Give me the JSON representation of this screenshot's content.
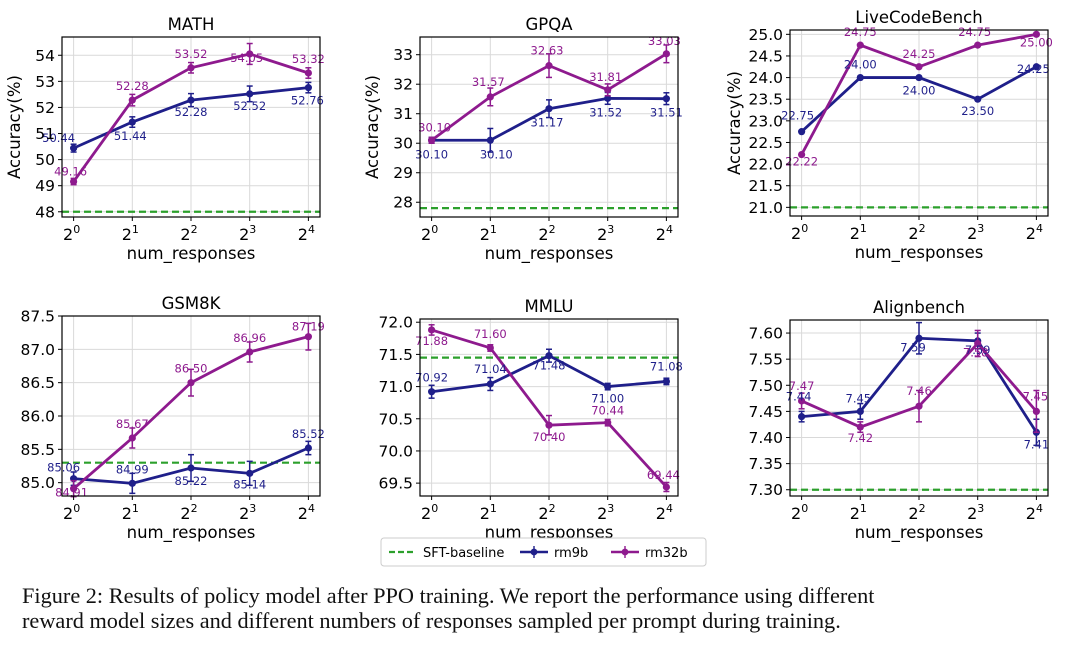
{
  "colors": {
    "baseline": "#2ca02c",
    "rm9b": "#1f1f8a",
    "rm32b": "#8e1a8e",
    "grid": "#d9d9d9",
    "axis": "#000000"
  },
  "legend": {
    "placement": "bottom-center",
    "items": [
      {
        "key": "baseline",
        "label": "SFT-baseline"
      },
      {
        "key": "rm9b",
        "label": "rm9b"
      },
      {
        "key": "rm32b",
        "label": "rm32b"
      }
    ]
  },
  "chart_data": [
    {
      "type": "line",
      "title": "MATH",
      "xlabel": "num_responses",
      "ylabel": "Accuracy(%)",
      "x": [
        0,
        1,
        2,
        3,
        4
      ],
      "x_ticks": [
        "0",
        "1",
        "2",
        "3",
        "4"
      ],
      "x_tick_base": "2",
      "ylim": [
        47.8,
        54.7
      ],
      "y_ticks": [
        "48",
        "49",
        "50",
        "51",
        "52",
        "53",
        "54"
      ],
      "grid": true,
      "baseline": 48.0,
      "series": [
        {
          "name": "rm9b",
          "values": [
            50.44,
            51.44,
            52.28,
            52.52,
            52.76
          ],
          "labels": [
            "50.44",
            "51.44",
            "52.28",
            "52.52",
            "52.76"
          ],
          "err": [
            0.15,
            0.2,
            0.25,
            0.3,
            0.2
          ]
        },
        {
          "name": "rm32b",
          "values": [
            49.16,
            52.28,
            53.52,
            54.05,
            53.32
          ],
          "labels": [
            "49.16",
            "52.28",
            "53.52",
            "54.05",
            "53.32"
          ],
          "err": [
            0.12,
            0.22,
            0.2,
            0.4,
            0.2
          ]
        }
      ]
    },
    {
      "type": "line",
      "title": "GPQA",
      "xlabel": "num_responses",
      "ylabel": "Accuracy(%)",
      "x": [
        0,
        1,
        2,
        3,
        4
      ],
      "x_ticks": [
        "0",
        "1",
        "2",
        "3",
        "4"
      ],
      "x_tick_base": "2",
      "ylim": [
        27.5,
        33.6
      ],
      "y_ticks": [
        "28",
        "29",
        "30",
        "31",
        "32",
        "33"
      ],
      "grid": true,
      "baseline": 27.8,
      "series": [
        {
          "name": "rm9b",
          "values": [
            30.1,
            30.1,
            31.17,
            31.52,
            31.51
          ],
          "labels": [
            "30.10",
            "30.10",
            "31.17",
            "31.52",
            "31.51"
          ],
          "err": [
            0.1,
            0.4,
            0.3,
            0.2,
            0.2
          ]
        },
        {
          "name": "rm32b",
          "values": [
            30.1,
            31.57,
            32.63,
            31.81,
            33.03
          ],
          "labels": [
            "30.10",
            "31.57",
            "32.63",
            "31.81",
            "33.03"
          ],
          "err": [
            0.1,
            0.3,
            0.4,
            0.2,
            0.3
          ]
        }
      ]
    },
    {
      "type": "line",
      "title": "LiveCodeBench",
      "xlabel": "num_responses",
      "ylabel": "Accuracy(%)",
      "x": [
        0,
        1,
        2,
        3,
        4
      ],
      "x_ticks": [
        "0",
        "1",
        "2",
        "3",
        "4"
      ],
      "x_tick_base": "2",
      "ylim": [
        20.8,
        25.1
      ],
      "y_ticks": [
        "21.0",
        "21.5",
        "22.0",
        "22.5",
        "23.0",
        "23.5",
        "24.0",
        "24.5",
        "25.0"
      ],
      "grid": true,
      "baseline": 21.0,
      "series": [
        {
          "name": "rm9b",
          "values": [
            22.75,
            24.0,
            24.0,
            23.5,
            24.25
          ],
          "labels": [
            "22.75",
            "24.00",
            "24.00",
            "23.50",
            "24.25"
          ],
          "err": [
            0,
            0,
            0,
            0,
            0
          ]
        },
        {
          "name": "rm32b",
          "values": [
            22.22,
            24.75,
            24.25,
            24.75,
            25.0
          ],
          "labels": [
            "22.22",
            "24.75",
            "24.25",
            "24.75",
            "25.00"
          ],
          "err": [
            0,
            0,
            0,
            0,
            0
          ]
        }
      ]
    },
    {
      "type": "line",
      "title": "GSM8K",
      "xlabel": "num_responses",
      "ylabel": "",
      "x": [
        0,
        1,
        2,
        3,
        4
      ],
      "x_ticks": [
        "0",
        "1",
        "2",
        "3",
        "4"
      ],
      "x_tick_base": "2",
      "ylim": [
        84.8,
        87.5
      ],
      "y_ticks": [
        "85.0",
        "85.5",
        "86.0",
        "86.5",
        "87.0",
        "87.5"
      ],
      "grid": true,
      "baseline": 85.3,
      "series": [
        {
          "name": "rm9b",
          "values": [
            85.06,
            84.99,
            85.22,
            85.14,
            85.52
          ],
          "labels": [
            "85.06",
            "84.99",
            "85.22",
            "85.14",
            "85.52"
          ],
          "err": [
            0.1,
            0.15,
            0.2,
            0.18,
            0.1
          ]
        },
        {
          "name": "rm32b",
          "values": [
            84.91,
            85.67,
            86.5,
            86.96,
            87.19
          ],
          "labels": [
            "84.91",
            "85.67",
            "86.50",
            "86.96",
            "87.19"
          ],
          "err": [
            0.12,
            0.15,
            0.2,
            0.15,
            0.2
          ]
        }
      ]
    },
    {
      "type": "line",
      "title": "MMLU",
      "xlabel": "num_responses",
      "ylabel": "",
      "x": [
        0,
        1,
        2,
        3,
        4
      ],
      "x_ticks": [
        "0",
        "1",
        "2",
        "3",
        "4"
      ],
      "x_tick_base": "2",
      "ylim": [
        69.3,
        72.05
      ],
      "y_ticks": [
        "69.5",
        "70.0",
        "70.5",
        "71.0",
        "71.5",
        "72.0"
      ],
      "y_tick_text": [
        "69.5",
        "70.0",
        "70.5",
        "71.0",
        "71.5",
        "72.0"
      ],
      "grid": true,
      "baseline": 71.45,
      "series": [
        {
          "name": "rm9b",
          "values": [
            70.92,
            71.04,
            71.48,
            71.0,
            71.08
          ],
          "labels": [
            "70.92",
            "71.04",
            "71.48",
            "71.00",
            "71.08"
          ],
          "err": [
            0.1,
            0.1,
            0.1,
            0.05,
            0.05
          ]
        },
        {
          "name": "rm32b",
          "values": [
            71.88,
            71.6,
            70.4,
            70.44,
            69.44
          ],
          "labels": [
            "71.88",
            "71.60",
            "70.40",
            "70.44",
            "69.44"
          ],
          "err": [
            0.08,
            0.05,
            0.15,
            0.05,
            0.07
          ]
        }
      ]
    },
    {
      "type": "line",
      "title": "Alignbench",
      "xlabel": "num_responses",
      "ylabel": "",
      "x": [
        0,
        1,
        2,
        3,
        4
      ],
      "x_ticks": [
        "0",
        "1",
        "2",
        "3",
        "4"
      ],
      "x_tick_base": "2",
      "ylim": [
        7.288,
        7.625
      ],
      "y_ticks": [
        "7.30",
        "7.35",
        "7.40",
        "7.45",
        "7.50",
        "7.55",
        "7.60"
      ],
      "grid": true,
      "baseline": 7.3,
      "series": [
        {
          "name": "rm9b",
          "values": [
            7.44,
            7.45,
            7.59,
            7.585,
            7.41
          ],
          "labels": [
            "7.44",
            "7.45",
            "7.59",
            "7.59",
            "7.41"
          ],
          "err": [
            0.01,
            0.015,
            0.03,
            0.015,
            0.025
          ]
        },
        {
          "name": "rm32b",
          "values": [
            7.47,
            7.42,
            7.46,
            7.58,
            7.45
          ],
          "labels": [
            "7.47",
            "7.42",
            "7.46",
            "7.58",
            "7.45"
          ],
          "err": [
            0.015,
            0.01,
            0.03,
            0.025,
            0.04
          ]
        }
      ]
    }
  ],
  "caption": {
    "line1": "Figure 2: Results of policy model after PPO training. We report the performance using different",
    "line2": "reward model sizes and different numbers of responses sampled per prompt during training."
  }
}
